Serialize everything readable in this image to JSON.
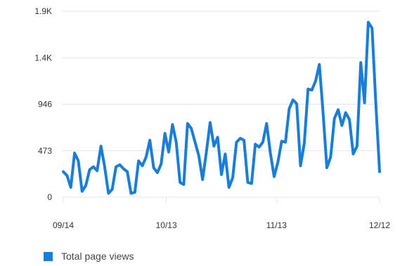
{
  "chart_data": {
    "type": "line",
    "y_ticks": [
      {
        "value": 0,
        "label": "0"
      },
      {
        "value": 473,
        "label": "473"
      },
      {
        "value": 946,
        "label": "946"
      },
      {
        "value": 1419,
        "label": "1.4K"
      },
      {
        "value": 1892,
        "label": "1.9K"
      }
    ],
    "ylim": [
      0,
      1892
    ],
    "x_ticks": [
      {
        "index": 0,
        "label": "09/14"
      },
      {
        "index": 29,
        "label": "10/13"
      },
      {
        "index": 60,
        "label": "11/13"
      },
      {
        "index": 89,
        "label": "12/12"
      }
    ],
    "grid": true,
    "legend_position": "bottom-left",
    "series": [
      {
        "name": "Total page views",
        "color": "#1a7dd7",
        "values": [
          260,
          220,
          100,
          450,
          370,
          60,
          120,
          280,
          310,
          270,
          520,
          310,
          40,
          80,
          310,
          330,
          290,
          260,
          40,
          50,
          370,
          320,
          410,
          580,
          300,
          250,
          340,
          650,
          460,
          740,
          560,
          150,
          130,
          750,
          700,
          560,
          420,
          180,
          460,
          760,
          520,
          610,
          230,
          440,
          100,
          200,
          560,
          600,
          580,
          150,
          140,
          540,
          510,
          560,
          750,
          450,
          210,
          360,
          570,
          560,
          900,
          990,
          950,
          320,
          550,
          1100,
          1090,
          1180,
          1350,
          860,
          300,
          410,
          800,
          890,
          730,
          860,
          790,
          440,
          520,
          1370,
          960,
          1780,
          1720,
          960,
          260
        ]
      }
    ]
  }
}
